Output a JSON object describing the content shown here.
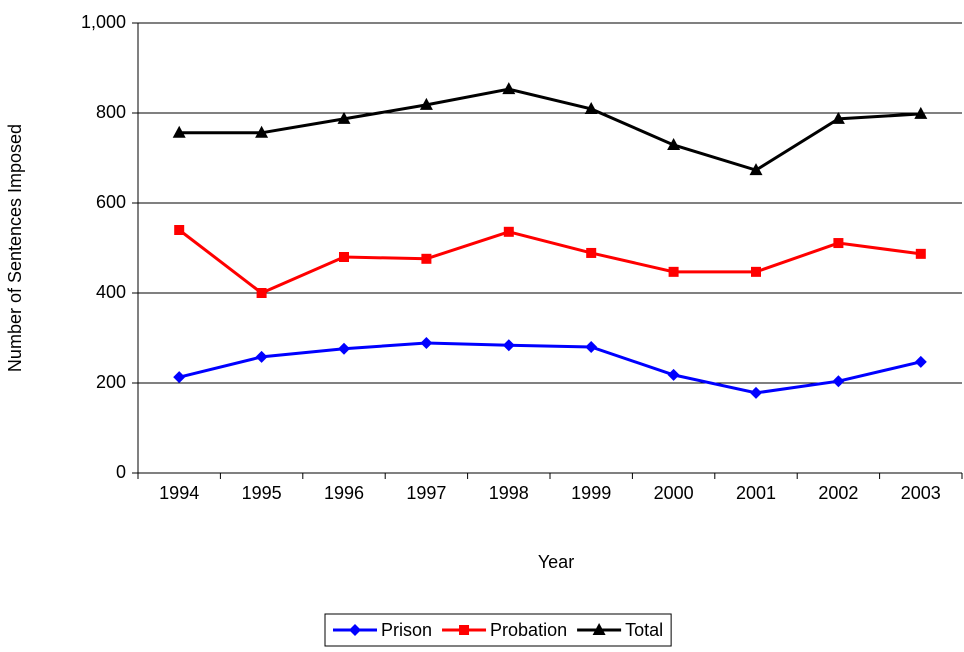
{
  "chart_data": {
    "type": "line",
    "x_label": "Year",
    "y_label": "Number of Sentences Imposed",
    "categories": [
      "1994",
      "1995",
      "1996",
      "1997",
      "1998",
      "1999",
      "2000",
      "2001",
      "2002",
      "2003"
    ],
    "series": [
      {
        "name": "Prison",
        "color": "#0000ff",
        "marker": "diamond",
        "values": [
          213,
          258,
          276,
          289,
          284,
          280,
          218,
          178,
          204,
          247
        ]
      },
      {
        "name": "Probation",
        "color": "#ff0000",
        "marker": "square",
        "values": [
          540,
          400,
          480,
          476,
          536,
          489,
          447,
          447,
          511,
          487
        ]
      },
      {
        "name": "Total",
        "color": "#000000",
        "marker": "triangle",
        "values": [
          756,
          756,
          787,
          818,
          853,
          809,
          729,
          673,
          787,
          798
        ]
      }
    ],
    "ylim": [
      0,
      1000
    ],
    "yticks": [
      0,
      200,
      400,
      600,
      800,
      {
        "value": 1000,
        "label": "1,000"
      }
    ],
    "grid": true,
    "legend": "bottom"
  }
}
